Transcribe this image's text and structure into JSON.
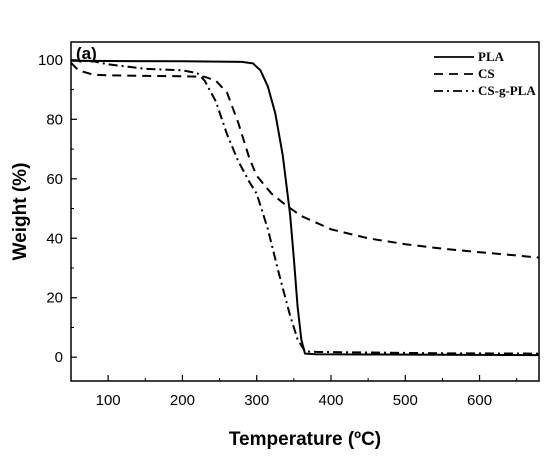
{
  "chart_data": {
    "type": "line",
    "panel_label": "(a)",
    "xlabel": "Temperature (ºC)",
    "ylabel": "Weight (%)",
    "xlim": [
      50,
      680
    ],
    "ylim": [
      -8,
      106
    ],
    "xticks": [
      100,
      200,
      300,
      400,
      500,
      600
    ],
    "yticks": [
      0,
      20,
      40,
      60,
      80,
      100
    ],
    "grid": false,
    "legend_position": "top-right",
    "series": [
      {
        "name": "PLA",
        "dash": "solid",
        "x": [
          50,
          100,
          200,
          280,
          295,
          305,
          315,
          325,
          335,
          345,
          350,
          355,
          360,
          365,
          380,
          450,
          550,
          680
        ],
        "y": [
          99.7,
          99.6,
          99.5,
          99.3,
          98.8,
          96.5,
          91,
          82,
          68,
          48,
          33,
          17,
          6,
          1.2,
          1,
          0.9,
          0.8,
          0.7
        ]
      },
      {
        "name": "CS",
        "dash": "dashed",
        "x": [
          50,
          60,
          80,
          100,
          150,
          200,
          230,
          245,
          260,
          275,
          290,
          300,
          320,
          340,
          360,
          400,
          450,
          500,
          550,
          600,
          650,
          680
        ],
        "y": [
          99,
          96.5,
          95,
          94.8,
          94.6,
          94.5,
          94.3,
          93,
          89,
          79,
          67,
          61,
          55,
          51,
          47.5,
          43,
          40,
          38,
          36.5,
          35.3,
          34.2,
          33.5
        ]
      },
      {
        "name": "CS-g-PLA",
        "dash": "dashdot",
        "x": [
          50,
          80,
          100,
          150,
          200,
          220,
          230,
          245,
          260,
          275,
          290,
          300,
          315,
          330,
          345,
          355,
          365,
          380,
          450,
          550,
          680
        ],
        "y": [
          99.8,
          99.5,
          98.5,
          97,
          96.5,
          95.5,
          93,
          86,
          75,
          66,
          59,
          55,
          43,
          28,
          14,
          6,
          2,
          1.8,
          1.6,
          1.3,
          1.2
        ]
      }
    ]
  }
}
